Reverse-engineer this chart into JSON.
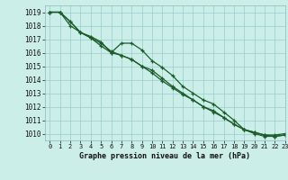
{
  "title": "Graphe pression niveau de la mer (hPa)",
  "bg_color": "#cceee8",
  "grid_color": "#99cccc",
  "line_color": "#1a5c2a",
  "xlim": [
    -0.5,
    23
  ],
  "ylim": [
    1009.5,
    1019.5
  ],
  "yticks": [
    1010,
    1011,
    1012,
    1013,
    1014,
    1015,
    1016,
    1017,
    1018,
    1019
  ],
  "xticks": [
    0,
    1,
    2,
    3,
    4,
    5,
    6,
    7,
    8,
    9,
    10,
    11,
    12,
    13,
    14,
    15,
    16,
    17,
    18,
    19,
    20,
    21,
    22,
    23
  ],
  "series1": [
    1019.0,
    1019.0,
    1018.3,
    1017.5,
    1017.2,
    1016.8,
    1016.0,
    1016.7,
    1016.7,
    1016.2,
    1015.4,
    1014.9,
    1014.3,
    1013.5,
    1013.0,
    1012.5,
    1012.2,
    1011.6,
    1011.0,
    1010.3,
    1010.1,
    1009.9,
    1009.9,
    1010.0
  ],
  "series2": [
    1019.0,
    1019.0,
    1018.0,
    1017.5,
    1017.1,
    1016.7,
    1016.1,
    1015.8,
    1015.5,
    1015.0,
    1014.7,
    1014.1,
    1013.5,
    1013.0,
    1012.5,
    1012.0,
    1011.7,
    1011.2,
    1010.7,
    1010.3,
    1010.0,
    1009.8,
    1009.8,
    1009.9
  ],
  "series3": [
    1019.0,
    1019.0,
    1018.3,
    1017.5,
    1017.1,
    1016.5,
    1016.0,
    1015.8,
    1015.5,
    1015.0,
    1014.5,
    1013.9,
    1013.4,
    1012.9,
    1012.5,
    1012.0,
    1011.6,
    1011.2,
    1010.7,
    1010.3,
    1010.1,
    1009.9,
    1009.8,
    1009.9
  ],
  "ylabel_fontsize": 5.5,
  "xlabel_fontsize": 6.0,
  "tick_fontsize": 5.0,
  "linewidth": 0.9,
  "markersize": 3.5
}
